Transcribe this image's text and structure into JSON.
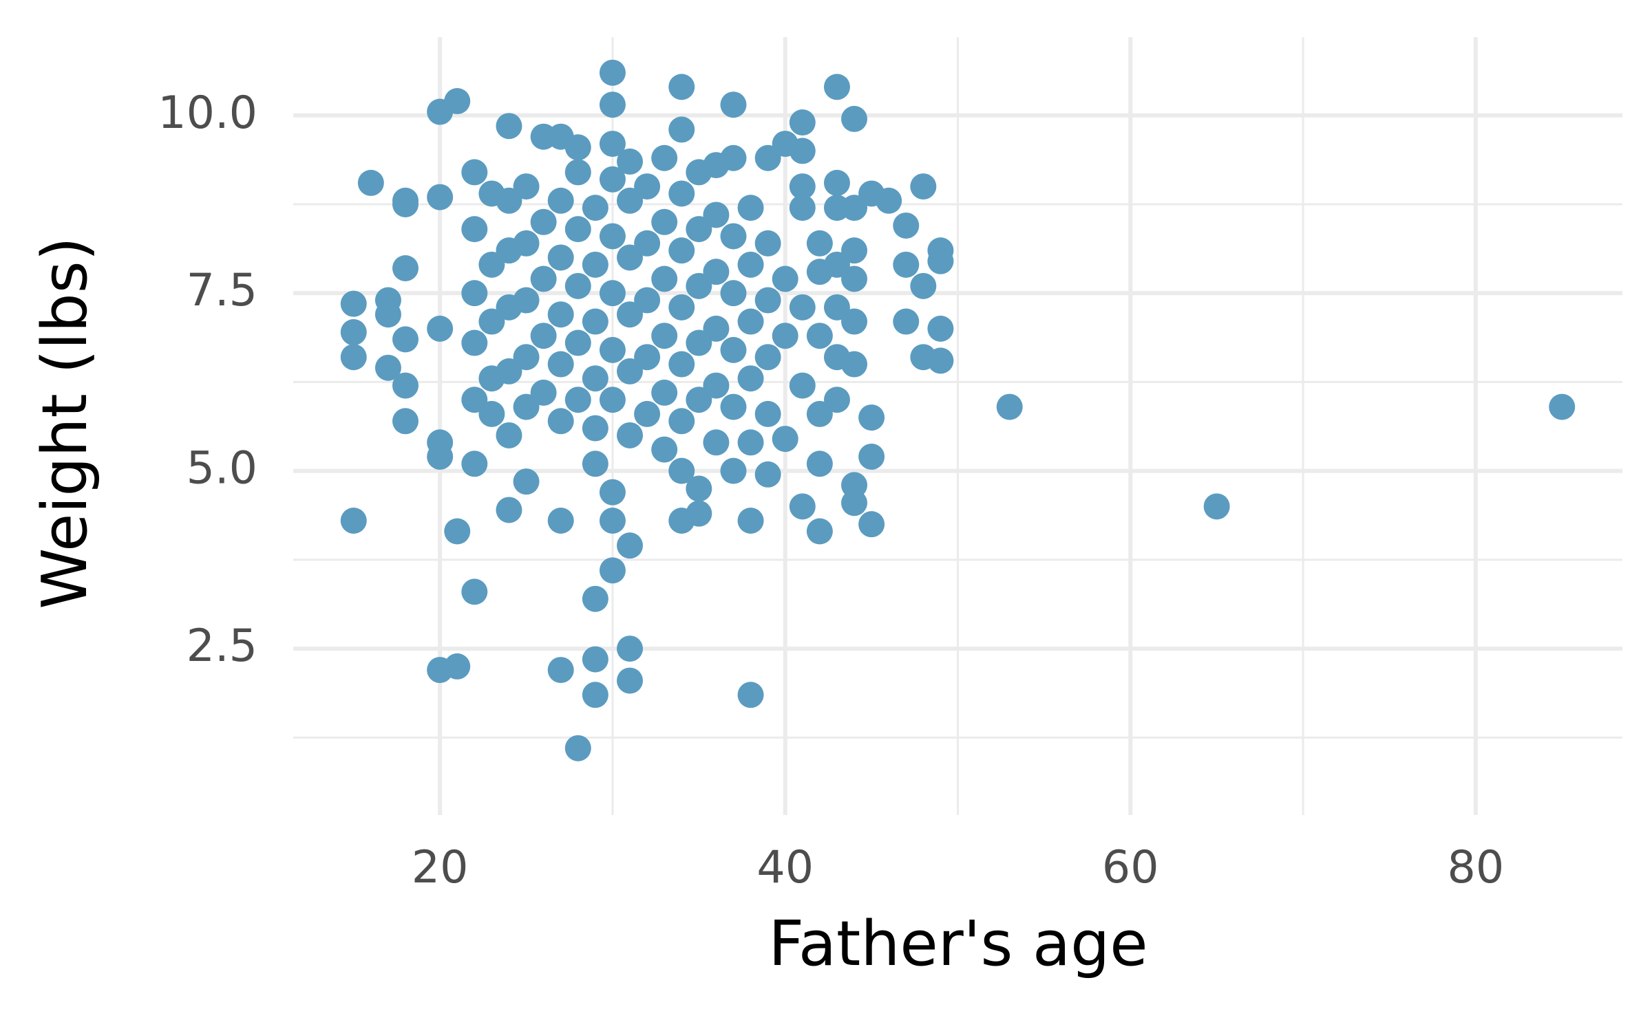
{
  "chart_data": {
    "type": "scatter",
    "x_label": "Father's age",
    "y_label": "Weight (lbs)",
    "color": "#5b9bc0",
    "grid": true,
    "xlim": [
      11.5,
      88.5
    ],
    "ylim": [
      0.16,
      11.1
    ],
    "xticks": [
      20,
      40,
      60,
      80
    ],
    "yticks": [
      2.5,
      {
        "value": 5,
        "label": "5.0"
      },
      7.5,
      {
        "value": 10,
        "label": "10.0"
      }
    ],
    "xminor": [
      30,
      50,
      70
    ],
    "yminor": [
      1.25,
      3.75,
      6.25,
      8.75
    ],
    "x": [
      15,
      15,
      15,
      15,
      16,
      17,
      17,
      17,
      18,
      18,
      18,
      18,
      18,
      18,
      20,
      21,
      20,
      20,
      20,
      20,
      20,
      21,
      21,
      22,
      22,
      22,
      24,
      24,
      27,
      27,
      28,
      29,
      29,
      29,
      30,
      30,
      30,
      30,
      30,
      31,
      31,
      31,
      34,
      37,
      38,
      38,
      43,
      44,
      41,
      41,
      45,
      46,
      47,
      48,
      49,
      49,
      48,
      47,
      49,
      48,
      49,
      47,
      45,
      45,
      45,
      44,
      44,
      42,
      41,
      42,
      39,
      34,
      35,
      35,
      53,
      65,
      85,
      22,
      22,
      22,
      22,
      23,
      23,
      23,
      23,
      23,
      24,
      24,
      24,
      24,
      24,
      25,
      25,
      25,
      25,
      25,
      25,
      26,
      26,
      26,
      26,
      26,
      27,
      27,
      27,
      27,
      27,
      27,
      28,
      28,
      28,
      28,
      28,
      28,
      29,
      29,
      29,
      29,
      29,
      29,
      30,
      30,
      30,
      30,
      30,
      30,
      31,
      31,
      31,
      31,
      31,
      31,
      32,
      32,
      32,
      32,
      32,
      33,
      33,
      33,
      33,
      33,
      33,
      34,
      34,
      34,
      34,
      34,
      34,
      34,
      35,
      35,
      35,
      35,
      35,
      36,
      36,
      36,
      36,
      36,
      36,
      37,
      37,
      37,
      37,
      37,
      37,
      38,
      38,
      38,
      38,
      38,
      39,
      39,
      39,
      39,
      39,
      40,
      40,
      40,
      40,
      41,
      41,
      41,
      41,
      42,
      42,
      42,
      42,
      43,
      43,
      43,
      43,
      43,
      43,
      44,
      44,
      44,
      44,
      44
    ],
    "values": [
      7.35,
      6.95,
      6.6,
      4.3,
      9.05,
      7.4,
      7.2,
      6.45,
      8.8,
      8.75,
      7.85,
      6.85,
      6.2,
      5.7,
      10.05,
      10.2,
      8.85,
      7.0,
      5.4,
      5.2,
      2.2,
      2.25,
      4.15,
      3.3,
      9.2,
      5.1,
      9.85,
      4.45,
      4.3,
      2.2,
      1.1,
      1.85,
      2.35,
      3.2,
      10.6,
      10.15,
      3.6,
      4.3,
      4.7,
      3.95,
      2.5,
      2.05,
      10.4,
      10.15,
      1.85,
      4.3,
      10.4,
      9.95,
      9.9,
      9.5,
      8.9,
      8.8,
      8.45,
      9.0,
      8.1,
      7.95,
      7.6,
      7.1,
      7.0,
      6.6,
      6.55,
      7.9,
      5.75,
      5.2,
      4.25,
      4.8,
      4.55,
      4.15,
      4.5,
      5.1,
      4.95,
      4.3,
      4.4,
      4.75,
      5.9,
      4.5,
      5.9,
      6.0,
      6.8,
      7.5,
      8.4,
      6.3,
      7.1,
      7.9,
      8.9,
      5.8,
      5.5,
      6.4,
      7.3,
      8.1,
      8.8,
      5.9,
      6.6,
      7.4,
      8.2,
      9.0,
      4.85,
      6.1,
      6.9,
      7.7,
      8.5,
      9.7,
      5.7,
      6.5,
      7.2,
      8.0,
      8.8,
      9.7,
      6.0,
      6.8,
      7.6,
      8.4,
      9.2,
      9.55,
      5.6,
      6.3,
      7.1,
      7.9,
      8.7,
      5.1,
      6.0,
      6.7,
      7.5,
      8.3,
      9.1,
      9.6,
      5.5,
      6.4,
      7.2,
      8.0,
      8.8,
      9.35,
      5.8,
      6.6,
      7.4,
      8.2,
      9.0,
      5.3,
      6.1,
      6.9,
      7.7,
      8.5,
      9.4,
      5.7,
      6.5,
      7.3,
      8.1,
      8.9,
      9.8,
      5.0,
      6.0,
      6.8,
      7.6,
      8.4,
      9.2,
      5.4,
      6.2,
      7.0,
      7.8,
      8.6,
      9.3,
      5.0,
      5.9,
      6.7,
      7.5,
      8.3,
      9.4,
      5.4,
      6.3,
      7.1,
      7.9,
      8.7,
      5.8,
      6.6,
      7.4,
      8.2,
      9.4,
      5.45,
      6.9,
      7.7,
      9.6,
      6.2,
      7.3,
      8.7,
      9.0,
      5.8,
      6.9,
      7.8,
      8.2,
      6.0,
      6.6,
      7.3,
      7.9,
      8.7,
      9.05,
      6.5,
      7.1,
      7.7,
      8.1,
      8.7
    ]
  }
}
